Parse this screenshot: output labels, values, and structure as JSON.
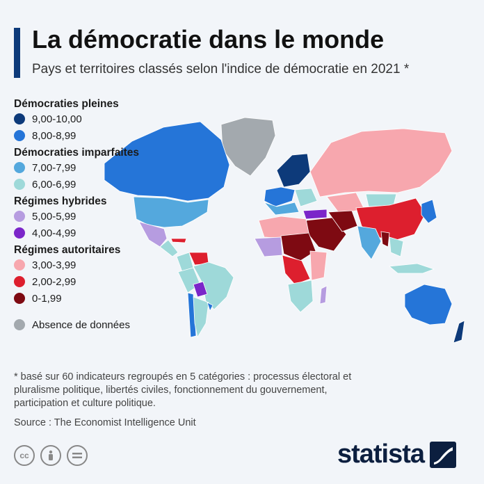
{
  "header": {
    "title": "La démocratie dans le monde",
    "subtitle": "Pays et territoires classés selon l'indice de démocratie en 2021 *"
  },
  "legend": {
    "categories": [
      {
        "label": "Démocraties pleines",
        "items": [
          {
            "range": "9,00-10,00",
            "color": "#0d3a7a"
          },
          {
            "range": "8,00-8,99",
            "color": "#2575d8"
          }
        ]
      },
      {
        "label": "Démocraties imparfaites",
        "items": [
          {
            "range": "7,00-7,99",
            "color": "#54a8dd"
          },
          {
            "range": "6,00-6,99",
            "color": "#9ed9d9"
          }
        ]
      },
      {
        "label": "Régimes hybrides",
        "items": [
          {
            "range": "5,00-5,99",
            "color": "#b69ce0"
          },
          {
            "range": "4,00-4,99",
            "color": "#7b26c9"
          }
        ]
      },
      {
        "label": "Régimes autoritaires",
        "items": [
          {
            "range": "3,00-3,99",
            "color": "#f7a7ae"
          },
          {
            "range": "2,00-2,99",
            "color": "#dd1f2e"
          },
          {
            "range": "0-1,99",
            "color": "#7e0a12"
          }
        ]
      }
    ],
    "no_data": {
      "label": "Absence de données",
      "color": "#a3a9ae"
    }
  },
  "map": {
    "regions": [
      {
        "name": "greenland",
        "color": "#a3a9ae"
      },
      {
        "name": "canada",
        "color": "#2575d8"
      },
      {
        "name": "usa",
        "color": "#54a8dd"
      },
      {
        "name": "mexico",
        "color": "#b69ce0"
      },
      {
        "name": "central-america",
        "color": "#9ed9d9"
      },
      {
        "name": "cuba",
        "color": "#dd1f2e"
      },
      {
        "name": "venezuela",
        "color": "#dd1f2e"
      },
      {
        "name": "colombia",
        "color": "#9ed9d9"
      },
      {
        "name": "brazil",
        "color": "#9ed9d9"
      },
      {
        "name": "peru",
        "color": "#9ed9d9"
      },
      {
        "name": "bolivia",
        "color": "#7b26c9"
      },
      {
        "name": "argentina",
        "color": "#9ed9d9"
      },
      {
        "name": "chile",
        "color": "#2575d8"
      },
      {
        "name": "uruguay",
        "color": "#2575d8"
      },
      {
        "name": "scandinavia",
        "color": "#0d3a7a"
      },
      {
        "name": "western-europe",
        "color": "#2575d8"
      },
      {
        "name": "southern-europe",
        "color": "#54a8dd"
      },
      {
        "name": "eastern-europe",
        "color": "#9ed9d9"
      },
      {
        "name": "russia",
        "color": "#f7a7ae"
      },
      {
        "name": "kazakhstan",
        "color": "#f7a7ae"
      },
      {
        "name": "mongolia",
        "color": "#9ed9d9"
      },
      {
        "name": "china",
        "color": "#dd1f2e"
      },
      {
        "name": "japan-korea",
        "color": "#2575d8"
      },
      {
        "name": "india",
        "color": "#54a8dd"
      },
      {
        "name": "southeast-asia",
        "color": "#9ed9d9"
      },
      {
        "name": "myanmar",
        "color": "#7e0a12"
      },
      {
        "name": "middle-east",
        "color": "#7e0a12"
      },
      {
        "name": "iran",
        "color": "#7e0a12"
      },
      {
        "name": "turkey",
        "color": "#7b26c9"
      },
      {
        "name": "north-africa",
        "color": "#f7a7ae"
      },
      {
        "name": "sahel",
        "color": "#7e0a12"
      },
      {
        "name": "west-africa",
        "color": "#b69ce0"
      },
      {
        "name": "central-africa",
        "color": "#dd1f2e"
      },
      {
        "name": "east-africa",
        "color": "#f7a7ae"
      },
      {
        "name": "southern-africa",
        "color": "#9ed9d9"
      },
      {
        "name": "madagascar",
        "color": "#b69ce0"
      },
      {
        "name": "indonesia-philippines",
        "color": "#9ed9d9"
      },
      {
        "name": "australia",
        "color": "#2575d8"
      },
      {
        "name": "new-zealand",
        "color": "#0d3a7a"
      }
    ]
  },
  "footer": {
    "footnote": "* basé sur 60 indicateurs regroupés en 5 catégories : processus électoral et\n   pluralisme politique, libertés civiles, fonctionnement du gouvernement,\n   participation et culture politique.",
    "source": "Source : The Economist Intelligence Unit",
    "brand": "statista"
  },
  "license_icons": [
    "cc-icon",
    "attribution-icon",
    "no-derivatives-icon"
  ]
}
